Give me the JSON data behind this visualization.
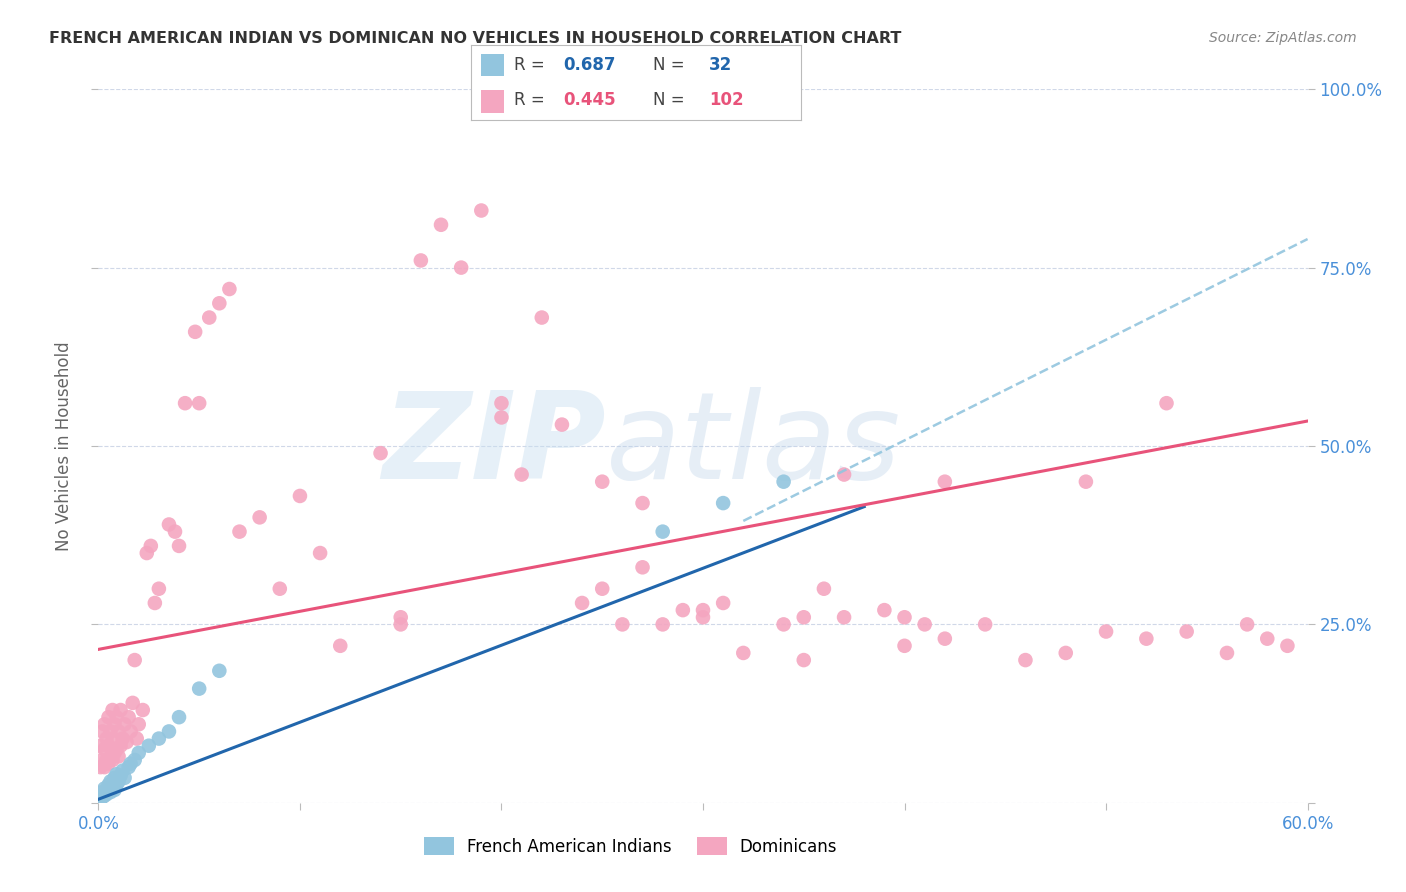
{
  "title": "FRENCH AMERICAN INDIAN VS DOMINICAN NO VEHICLES IN HOUSEHOLD CORRELATION CHART",
  "source": "Source: ZipAtlas.com",
  "ylabel": "No Vehicles in Household",
  "xlim": [
    0.0,
    0.6
  ],
  "ylim": [
    0.0,
    1.0
  ],
  "legend_R1": "0.687",
  "legend_N1": "32",
  "legend_R2": "0.445",
  "legend_N2": "102",
  "legend_label1": "French American Indians",
  "legend_label2": "Dominicans",
  "watermark_zip": "ZIP",
  "watermark_atlas": "atlas",
  "blue_color": "#92c5de",
  "pink_color": "#f4a6c0",
  "blue_line_color": "#2166ac",
  "pink_line_color": "#e8537a",
  "dashed_line_color": "#92c5de",
  "background_color": "#ffffff",
  "grid_color": "#d0d8e8",
  "title_color": "#333333",
  "axis_color": "#4a90d9",
  "source_color": "#888888",
  "blue_scatter_x": [
    0.001,
    0.002,
    0.002,
    0.003,
    0.003,
    0.004,
    0.005,
    0.005,
    0.006,
    0.006,
    0.007,
    0.008,
    0.008,
    0.009,
    0.009,
    0.01,
    0.011,
    0.012,
    0.013,
    0.015,
    0.016,
    0.018,
    0.02,
    0.025,
    0.03,
    0.035,
    0.04,
    0.05,
    0.06,
    0.28,
    0.31,
    0.34
  ],
  "blue_scatter_y": [
    0.005,
    0.008,
    0.015,
    0.01,
    0.02,
    0.012,
    0.018,
    0.025,
    0.015,
    0.03,
    0.022,
    0.018,
    0.035,
    0.025,
    0.04,
    0.03,
    0.038,
    0.045,
    0.035,
    0.05,
    0.055,
    0.06,
    0.07,
    0.08,
    0.09,
    0.1,
    0.12,
    0.16,
    0.185,
    0.38,
    0.42,
    0.45
  ],
  "pink_scatter_x": [
    0.001,
    0.001,
    0.002,
    0.002,
    0.003,
    0.003,
    0.003,
    0.004,
    0.004,
    0.005,
    0.005,
    0.005,
    0.006,
    0.006,
    0.007,
    0.007,
    0.007,
    0.008,
    0.008,
    0.009,
    0.009,
    0.01,
    0.01,
    0.011,
    0.011,
    0.012,
    0.013,
    0.014,
    0.015,
    0.016,
    0.017,
    0.018,
    0.019,
    0.02,
    0.022,
    0.024,
    0.026,
    0.028,
    0.03,
    0.035,
    0.038,
    0.04,
    0.043,
    0.048,
    0.05,
    0.055,
    0.06,
    0.065,
    0.07,
    0.08,
    0.09,
    0.1,
    0.11,
    0.12,
    0.14,
    0.15,
    0.16,
    0.17,
    0.18,
    0.19,
    0.2,
    0.21,
    0.22,
    0.23,
    0.24,
    0.25,
    0.26,
    0.27,
    0.29,
    0.3,
    0.31,
    0.32,
    0.34,
    0.35,
    0.36,
    0.37,
    0.39,
    0.4,
    0.41,
    0.42,
    0.44,
    0.46,
    0.48,
    0.5,
    0.52,
    0.54,
    0.56,
    0.57,
    0.58,
    0.59,
    0.37,
    0.42,
    0.27,
    0.28,
    0.49,
    0.53,
    0.15,
    0.2,
    0.25,
    0.3,
    0.35,
    0.4
  ],
  "pink_scatter_y": [
    0.05,
    0.08,
    0.06,
    0.1,
    0.05,
    0.075,
    0.11,
    0.06,
    0.09,
    0.055,
    0.08,
    0.12,
    0.065,
    0.1,
    0.06,
    0.09,
    0.13,
    0.07,
    0.11,
    0.075,
    0.12,
    0.065,
    0.1,
    0.08,
    0.13,
    0.09,
    0.11,
    0.085,
    0.12,
    0.1,
    0.14,
    0.2,
    0.09,
    0.11,
    0.13,
    0.35,
    0.36,
    0.28,
    0.3,
    0.39,
    0.38,
    0.36,
    0.56,
    0.66,
    0.56,
    0.68,
    0.7,
    0.72,
    0.38,
    0.4,
    0.3,
    0.43,
    0.35,
    0.22,
    0.49,
    0.26,
    0.76,
    0.81,
    0.75,
    0.83,
    0.56,
    0.46,
    0.68,
    0.53,
    0.28,
    0.3,
    0.25,
    0.33,
    0.27,
    0.26,
    0.28,
    0.21,
    0.25,
    0.26,
    0.3,
    0.26,
    0.27,
    0.26,
    0.25,
    0.23,
    0.25,
    0.2,
    0.21,
    0.24,
    0.23,
    0.24,
    0.21,
    0.25,
    0.23,
    0.22,
    0.46,
    0.45,
    0.42,
    0.25,
    0.45,
    0.56,
    0.25,
    0.54,
    0.45,
    0.27,
    0.2,
    0.22
  ],
  "blue_line_x0": 0.0,
  "blue_line_y0": 0.005,
  "blue_line_x1": 0.38,
  "blue_line_y1": 0.415,
  "pink_line_x0": 0.0,
  "pink_line_y0": 0.215,
  "pink_line_x1": 0.6,
  "pink_line_y1": 0.535,
  "dashed_line_x0": 0.32,
  "dashed_line_y0": 0.395,
  "dashed_line_x1": 0.6,
  "dashed_line_y1": 0.79
}
